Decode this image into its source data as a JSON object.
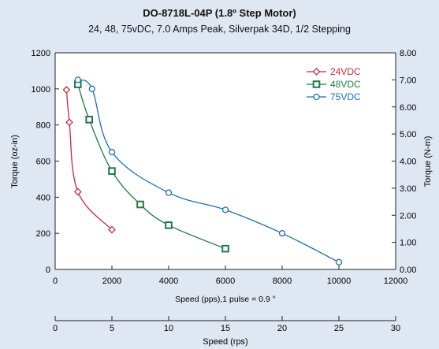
{
  "chart_data": {
    "type": "line",
    "title": "DO-8718L-04P (1.8º Step Motor)",
    "subtitle": "24, 48, 75vDC, 7.0 Amps Peak, Silverpak 34D, 1/2 Stepping",
    "xlabel": "Speed (pps),1 pulse = 0.9  °",
    "ylabel": "Torque (oz-in)",
    "y2label": "Torque (N-m)",
    "x2label": "Speed (rps)",
    "xlim": [
      0,
      12000
    ],
    "ylim": [
      0,
      1200
    ],
    "y2lim": [
      0,
      8
    ],
    "x2lim": [
      0,
      30
    ],
    "xticks": [
      "0",
      "2000",
      "4000",
      "6000",
      "8000",
      "10000",
      "12000"
    ],
    "yticks": [
      "0",
      "200",
      "400",
      "600",
      "800",
      "1000",
      "1200"
    ],
    "y2ticks": [
      "0.00",
      "1.00",
      "2.00",
      "3.00",
      "4.00",
      "5.00",
      "6.00",
      "7.00",
      "8.00"
    ],
    "x2ticks": [
      "0",
      "5",
      "10",
      "15",
      "20",
      "25",
      "30"
    ],
    "grid": false,
    "legend_position": "top-right",
    "series": [
      {
        "name": "24VDC",
        "color": "#cc2a3c",
        "marker": "diamond",
        "x": [
          400,
          500,
          800,
          2000
        ],
        "y": [
          995,
          815,
          430,
          220
        ]
      },
      {
        "name": "48VDC",
        "color": "#1f7a47",
        "marker": "square",
        "x": [
          800,
          1200,
          2000,
          3000,
          4000,
          6000
        ],
        "y": [
          1025,
          830,
          545,
          360,
          245,
          115
        ]
      },
      {
        "name": "75VDC",
        "color": "#1a6fb8",
        "marker": "circle",
        "x": [
          800,
          1300,
          2000,
          4000,
          6000,
          8000,
          10000
        ],
        "y": [
          1050,
          1000,
          650,
          425,
          330,
          200,
          40
        ]
      }
    ]
  }
}
